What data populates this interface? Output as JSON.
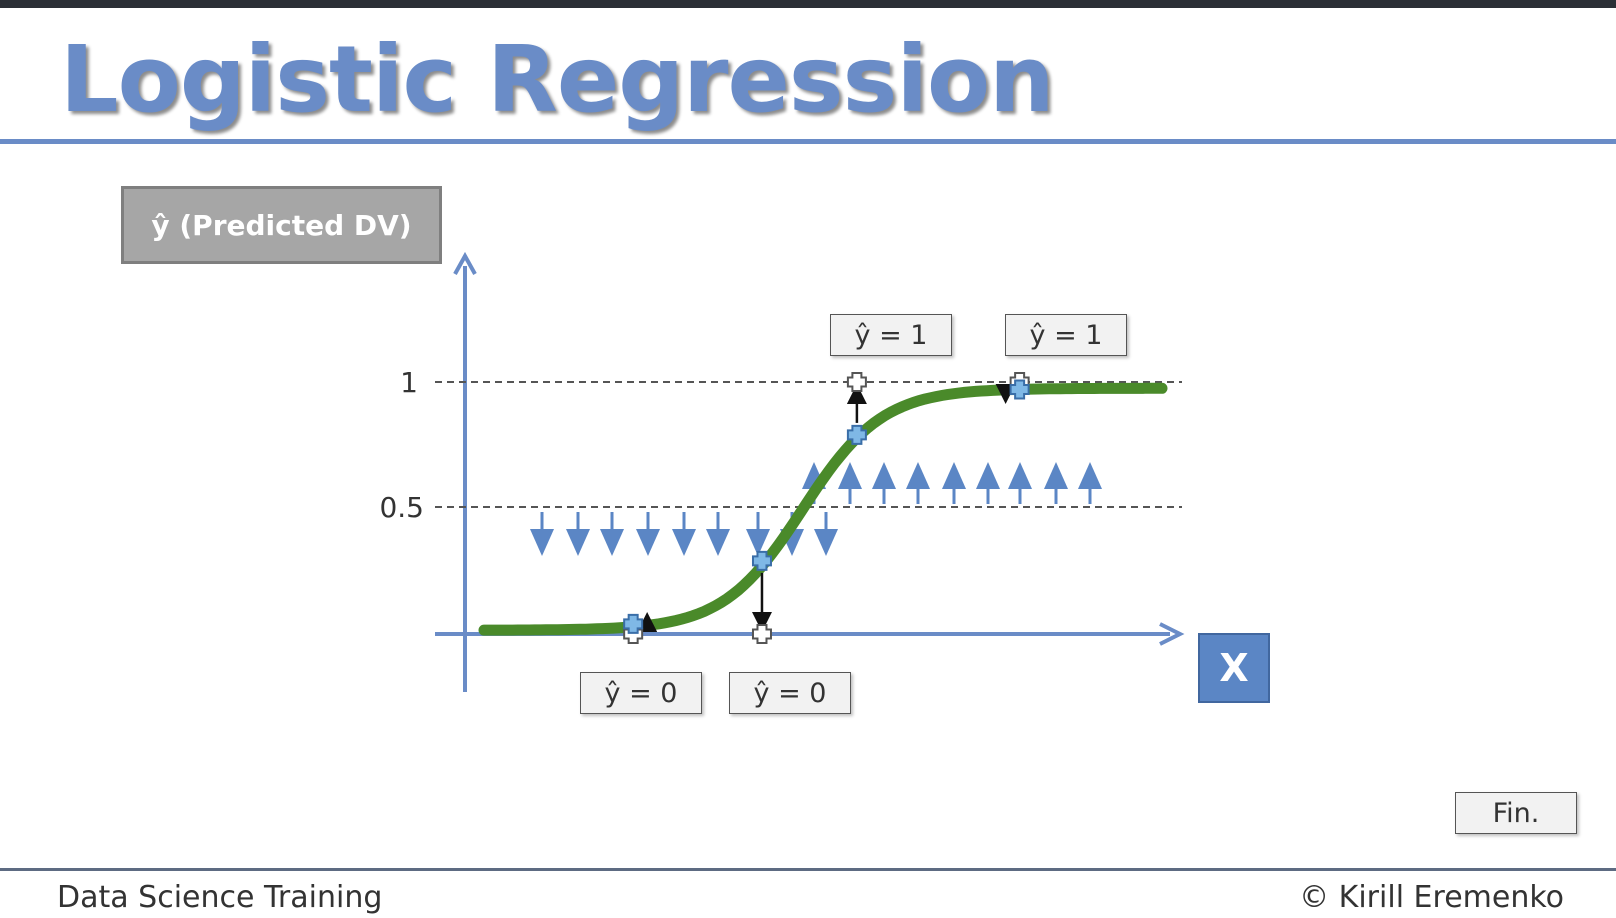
{
  "title": "Logistic Regression",
  "y_axis_label": "ŷ (Predicted DV)",
  "x_axis_label": "X",
  "y_ticks": [
    {
      "value": 1,
      "label": "1"
    },
    {
      "value": 0.5,
      "label": "0.5"
    }
  ],
  "predictions": [
    {
      "label": "ŷ = 0",
      "x": 0.22,
      "y_prob": 0.04,
      "class": 0
    },
    {
      "label": "ŷ = 0",
      "x": 0.41,
      "y_prob": 0.29,
      "class": 0
    },
    {
      "label": "ŷ = 1",
      "x": 0.55,
      "y_prob": 0.79,
      "class": 1
    },
    {
      "label": "ŷ = 1",
      "x": 0.79,
      "y_prob": 0.97,
      "class": 1
    }
  ],
  "fin_button": "Fin.",
  "footer": {
    "left": "Data Science Training",
    "right": "© Kirill Eremenko"
  },
  "colors": {
    "title": "#6a8cc7",
    "axis": "#6a8cc7",
    "curve": "#4a8a2a",
    "arrow_blue": "#5b86c5",
    "point_fill": "#7fb8e6",
    "x_box": "#5b86c5",
    "label_box_bg": "#a6a6a6"
  }
}
